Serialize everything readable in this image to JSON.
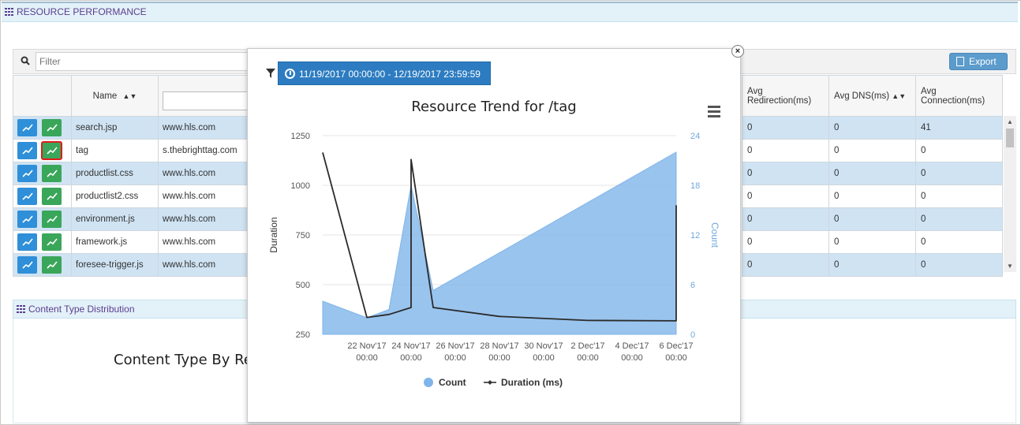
{
  "panel": {
    "title": "RESOURCE PERFORMANCE"
  },
  "filter": {
    "placeholder": "Filter",
    "export_label": "Export"
  },
  "table_left": {
    "col_name": "Name",
    "rows": [
      {
        "name": "search.jsp",
        "domain": "www.hls.com"
      },
      {
        "name": "tag",
        "domain": "s.thebrighttag.com"
      },
      {
        "name": "productlist.css",
        "domain": "www.hls.com"
      },
      {
        "name": "productlist2.css",
        "domain": "www.hls.com"
      },
      {
        "name": "environment.js",
        "domain": "www.hls.com"
      },
      {
        "name": "framework.js",
        "domain": "www.hls.com"
      },
      {
        "name": "foresee-trigger.js",
        "domain": "www.hls.com"
      }
    ]
  },
  "table_right": {
    "headers": [
      "Avg Redirection(ms)",
      "Avg DNS(ms)",
      "Avg Connection(ms)"
    ],
    "rows": [
      [
        "0",
        "0",
        "41"
      ],
      [
        "0",
        "0",
        "0"
      ],
      [
        "0",
        "0",
        "0"
      ],
      [
        "0",
        "0",
        "0"
      ],
      [
        "0",
        "0",
        "0"
      ],
      [
        "0",
        "0",
        "0"
      ],
      [
        "0",
        "0",
        "0"
      ]
    ]
  },
  "content_panel": {
    "title": "Content Type Distribution",
    "chart_title": "Content Type By Re"
  },
  "modal": {
    "date_range": "11/19/2017 00:00:00 - 12/19/2017 23:59:59",
    "close_label": "×"
  },
  "colors": {
    "accent": "#2d7cc1",
    "area": "#7fb5ea",
    "line": "#2b2b2b",
    "row_alt": "#cfe3f3"
  },
  "chart_data": {
    "type": "line",
    "title": "Resource Trend for  /tag",
    "ylabel": "Duration",
    "y2label": "Count",
    "ylim": [
      250,
      1250
    ],
    "y2lim": [
      0,
      24
    ],
    "yticks": [
      "1250",
      "1000",
      "750",
      "500",
      "250"
    ],
    "y2ticks": [
      "24",
      "18",
      "12",
      "6",
      "0"
    ],
    "xticks": [
      [
        "22 Nov'17",
        "00:00"
      ],
      [
        "24 Nov'17",
        "00:00"
      ],
      [
        "26 Nov'17",
        "00:00"
      ],
      [
        "28 Nov'17",
        "00:00"
      ],
      [
        "30 Nov'17",
        "00:00"
      ],
      [
        "2 Dec'17",
        "00:00"
      ],
      [
        "4 Dec'17",
        "00:00"
      ],
      [
        "6 Dec'17",
        "00:00"
      ]
    ],
    "legend": [
      "Count",
      "Duration (ms)"
    ],
    "series": [
      {
        "name": "Count",
        "kind": "area",
        "axis": "right",
        "points": [
          [
            "20 Nov'17",
            4
          ],
          [
            "22 Nov'17",
            2
          ],
          [
            "23 Nov'17",
            3
          ],
          [
            "24 Nov'17",
            18
          ],
          [
            "25 Nov'17",
            5.3
          ],
          [
            "6 Dec'17",
            22
          ]
        ]
      },
      {
        "name": "Duration (ms)",
        "kind": "line",
        "axis": "left",
        "points": [
          [
            "20 Nov'17",
            1165
          ],
          [
            "22 Nov'17",
            335
          ],
          [
            "23 Nov'17",
            350
          ],
          [
            "24 Nov'17",
            385
          ],
          [
            "24 Nov'17",
            1130
          ],
          [
            "25 Nov'17",
            385
          ],
          [
            "28 Nov'17",
            340
          ],
          [
            "2 Dec'17",
            320
          ],
          [
            "6 Dec'17",
            318
          ],
          [
            "6 Dec'17",
            900
          ]
        ]
      }
    ]
  }
}
